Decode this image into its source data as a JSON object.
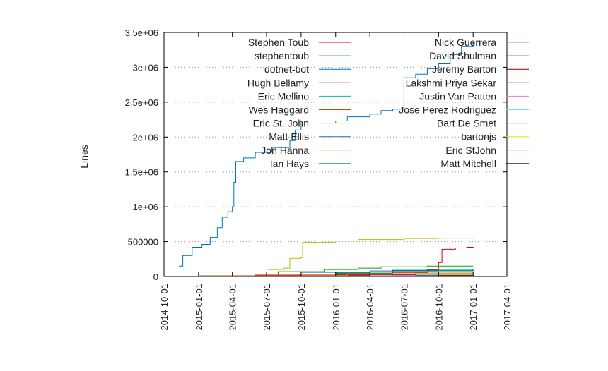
{
  "chart_data": {
    "type": "line",
    "title": "",
    "xlabel": "",
    "ylabel": "Lines",
    "x_ticks": [
      "2014-10-01",
      "2015-01-01",
      "2015-04-01",
      "2015-07-01",
      "2015-10-01",
      "2016-01-01",
      "2016-04-01",
      "2016-07-01",
      "2016-10-01",
      "2017-01-01",
      "2017-04-01"
    ],
    "y_ticks": [
      {
        "value": 0,
        "label": "0"
      },
      {
        "value": 500000,
        "label": "500000"
      },
      {
        "value": 1000000,
        "label": "1e+06"
      },
      {
        "value": 1500000,
        "label": "1.5e+06"
      },
      {
        "value": 2000000,
        "label": "2e+06"
      },
      {
        "value": 2500000,
        "label": "2.5e+06"
      },
      {
        "value": 3000000,
        "label": "3e+06"
      },
      {
        "value": 3500000,
        "label": "3.5e+06"
      }
    ],
    "xlim": [
      "2014-10-01",
      "2017-04-01"
    ],
    "ylim": [
      0,
      3500000
    ],
    "grid": "horizontal-dotted",
    "legend_columns": 2,
    "series": [
      {
        "name": "Stephen Toub",
        "color": "#dd0000",
        "points": [
          [
            "2015-01-01",
            5000
          ],
          [
            "2015-06-01",
            20000
          ],
          [
            "2016-01-01",
            30000
          ],
          [
            "2016-06-01",
            60000
          ],
          [
            "2016-09-01",
            100000
          ],
          [
            "2016-10-01",
            200000
          ],
          [
            "2016-10-10",
            390000
          ],
          [
            "2016-11-15",
            410000
          ],
          [
            "2016-12-15",
            420000
          ],
          [
            "2017-01-01",
            425000
          ]
        ]
      },
      {
        "name": "stephentoub",
        "color": "#00aa00",
        "points": [
          [
            "2015-06-01",
            10000
          ],
          [
            "2015-08-01",
            70000
          ],
          [
            "2015-12-01",
            100000
          ],
          [
            "2016-03-01",
            120000
          ],
          [
            "2016-05-01",
            140000
          ],
          [
            "2016-09-01",
            150000
          ],
          [
            "2017-01-01",
            150000
          ]
        ]
      },
      {
        "name": "dotnet-bot",
        "color": "#0070c0",
        "points": [
          [
            "2014-11-10",
            150000
          ],
          [
            "2014-11-20",
            300000
          ],
          [
            "2014-12-15",
            420000
          ],
          [
            "2015-01-10",
            460000
          ],
          [
            "2015-02-01",
            560000
          ],
          [
            "2015-02-20",
            700000
          ],
          [
            "2015-03-05",
            850000
          ],
          [
            "2015-03-20",
            930000
          ],
          [
            "2015-04-01",
            1000000
          ],
          [
            "2015-04-05",
            1350000
          ],
          [
            "2015-04-10",
            1650000
          ],
          [
            "2015-05-01",
            1700000
          ],
          [
            "2015-06-01",
            1780000
          ],
          [
            "2015-07-15",
            1850000
          ],
          [
            "2015-09-01",
            1950000
          ],
          [
            "2015-09-15",
            2100000
          ],
          [
            "2015-10-01",
            2200000
          ],
          [
            "2016-01-01",
            2230000
          ],
          [
            "2016-02-01",
            2290000
          ],
          [
            "2016-04-01",
            2330000
          ],
          [
            "2016-05-01",
            2380000
          ],
          [
            "2016-06-01",
            2400000
          ],
          [
            "2016-06-25",
            2420000
          ],
          [
            "2016-07-01",
            2850000
          ],
          [
            "2016-08-01",
            2900000
          ],
          [
            "2016-09-01",
            2980000
          ],
          [
            "2016-10-01",
            3050000
          ],
          [
            "2016-11-01",
            3180000
          ],
          [
            "2016-12-01",
            3300000
          ],
          [
            "2017-01-01",
            3360000
          ]
        ]
      },
      {
        "name": "Hugh Bellamy",
        "color": "#aa00aa",
        "points": [
          [
            "2015-12-01",
            10000
          ],
          [
            "2016-04-01",
            30000
          ],
          [
            "2016-08-01",
            50000
          ],
          [
            "2017-01-01",
            60000
          ]
        ]
      },
      {
        "name": "Eric Mellino",
        "color": "#00bbaa",
        "points": [
          [
            "2015-06-01",
            5000
          ],
          [
            "2016-01-01",
            40000
          ],
          [
            "2016-06-01",
            80000
          ],
          [
            "2017-01-01",
            110000
          ]
        ]
      },
      {
        "name": "Wes Haggard",
        "color": "#b05000",
        "points": [
          [
            "2015-01-01",
            10000
          ],
          [
            "2015-06-01",
            15000
          ],
          [
            "2016-01-01",
            20000
          ],
          [
            "2017-01-01",
            25000
          ]
        ]
      },
      {
        "name": "Eric St. John",
        "color": "#bbbb00",
        "points": [
          [
            "2015-07-01",
            100000
          ],
          [
            "2015-08-15",
            120000
          ],
          [
            "2015-09-01",
            260000
          ],
          [
            "2015-10-01",
            270000
          ],
          [
            "2015-10-05",
            490000
          ],
          [
            "2016-01-01",
            510000
          ],
          [
            "2016-03-01",
            530000
          ],
          [
            "2016-07-01",
            545000
          ],
          [
            "2016-10-01",
            550000
          ],
          [
            "2017-01-01",
            560000
          ]
        ]
      },
      {
        "name": "Matt Ellis",
        "color": "#3366cc",
        "points": [
          [
            "2015-04-01",
            5000
          ],
          [
            "2015-10-01",
            60000
          ],
          [
            "2016-04-01",
            80000
          ],
          [
            "2016-10-01",
            90000
          ],
          [
            "2017-01-01",
            95000
          ]
        ]
      },
      {
        "name": "Jon Hanna",
        "color": "#d6a000",
        "points": [
          [
            "2015-10-01",
            10000
          ],
          [
            "2016-02-01",
            40000
          ],
          [
            "2016-06-01",
            50000
          ],
          [
            "2017-01-01",
            55000
          ]
        ]
      },
      {
        "name": "Ian Hays",
        "color": "#00774a",
        "points": [
          [
            "2015-08-01",
            5000
          ],
          [
            "2016-01-01",
            50000
          ],
          [
            "2016-06-01",
            90000
          ],
          [
            "2017-01-01",
            100000
          ]
        ]
      },
      {
        "name": "Nick Guerrera",
        "color": "#b27ae6",
        "points": [
          [
            "2016-01-01",
            5000
          ],
          [
            "2016-06-01",
            15000
          ],
          [
            "2017-01-01",
            20000
          ]
        ]
      },
      {
        "name": "David Shulman",
        "color": "#1a78c2",
        "points": [
          [
            "2016-03-01",
            5000
          ],
          [
            "2016-08-01",
            15000
          ],
          [
            "2017-01-01",
            20000
          ]
        ]
      },
      {
        "name": "Jeremy Barton",
        "color": "#800000",
        "points": [
          [
            "2016-04-01",
            5000
          ],
          [
            "2016-10-01",
            15000
          ],
          [
            "2017-01-01",
            20000
          ]
        ]
      },
      {
        "name": "Lakshmi Priya Sekar",
        "color": "#2e6b00",
        "points": [
          [
            "2016-05-01",
            5000
          ],
          [
            "2016-10-01",
            10000
          ],
          [
            "2017-01-01",
            15000
          ]
        ]
      },
      {
        "name": "Justin Van Patten",
        "color": "#e67ae6",
        "points": [
          [
            "2016-02-01",
            3000
          ],
          [
            "2017-01-01",
            10000
          ]
        ]
      },
      {
        "name": "Jose Perez Rodriguez",
        "color": "#7ae6b4",
        "points": [
          [
            "2016-03-01",
            3000
          ],
          [
            "2017-01-01",
            8000
          ]
        ]
      },
      {
        "name": "Bart De Smet",
        "color": "#c41a1a",
        "points": [
          [
            "2016-06-01",
            3000
          ],
          [
            "2017-01-01",
            7000
          ]
        ]
      },
      {
        "name": "bartonjs",
        "color": "#e6e600",
        "points": [
          [
            "2016-06-01",
            3000
          ],
          [
            "2017-01-01",
            6000
          ]
        ]
      },
      {
        "name": "Eric StJohn",
        "color": "#33cccc",
        "points": [
          [
            "2016-07-01",
            2000
          ],
          [
            "2017-01-01",
            5000
          ]
        ]
      },
      {
        "name": "Matt Mitchell",
        "color": "#000000",
        "points": [
          [
            "2016-08-01",
            2000
          ],
          [
            "2017-01-01",
            4000
          ]
        ]
      }
    ]
  }
}
